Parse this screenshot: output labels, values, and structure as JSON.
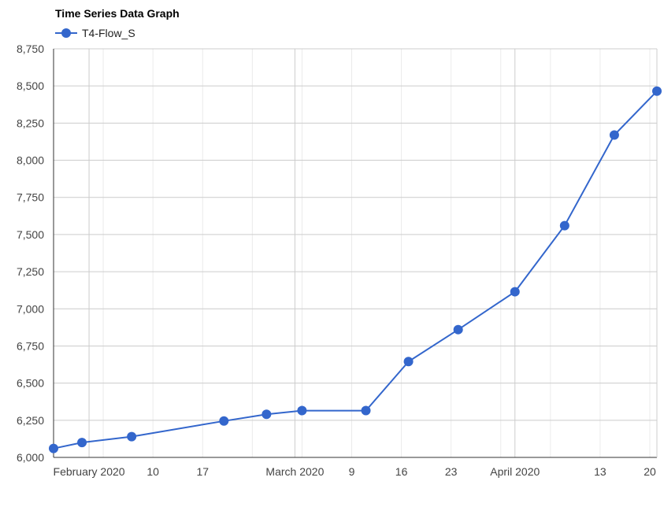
{
  "chart_data": {
    "type": "line",
    "title": "Time Series Data Graph",
    "xlabel": "",
    "ylabel": "",
    "ylim": [
      6000,
      8750
    ],
    "yticks": [
      6000,
      6250,
      6500,
      6750,
      7000,
      7250,
      7500,
      7750,
      8000,
      8250,
      8500,
      8750
    ],
    "ytick_labels": [
      "6,000",
      "6,250",
      "6,500",
      "6,750",
      "7,000",
      "7,250",
      "7,500",
      "7,750",
      "8,000",
      "8,250",
      "8,500",
      "8,750"
    ],
    "xlim": [
      "2020-01-27",
      "2020-04-21"
    ],
    "xticks": [
      {
        "date": "2020-02-01",
        "label": "February 2020"
      },
      {
        "date": "2020-02-10",
        "label": "10"
      },
      {
        "date": "2020-02-17",
        "label": "17"
      },
      {
        "date": "2020-03-01",
        "label": "March 2020"
      },
      {
        "date": "2020-03-09",
        "label": "9"
      },
      {
        "date": "2020-03-16",
        "label": "16"
      },
      {
        "date": "2020-03-23",
        "label": "23"
      },
      {
        "date": "2020-04-01",
        "label": "April 2020"
      },
      {
        "date": "2020-04-13",
        "label": "13"
      },
      {
        "date": "2020-04-20",
        "label": "20"
      }
    ],
    "grid": true,
    "legend_position": "top-left",
    "series": [
      {
        "name": "T4-Flow_S",
        "color": "#3366cc",
        "points": [
          {
            "x": "2020-01-27",
            "y": 6060
          },
          {
            "x": "2020-01-31",
            "y": 6100
          },
          {
            "x": "2020-02-07",
            "y": 6140
          },
          {
            "x": "2020-02-20",
            "y": 6245
          },
          {
            "x": "2020-02-26",
            "y": 6290
          },
          {
            "x": "2020-03-02",
            "y": 6315
          },
          {
            "x": "2020-03-11",
            "y": 6315
          },
          {
            "x": "2020-03-17",
            "y": 6645
          },
          {
            "x": "2020-03-24",
            "y": 6860
          },
          {
            "x": "2020-04-01",
            "y": 7115
          },
          {
            "x": "2020-04-08",
            "y": 7560
          },
          {
            "x": "2020-04-15",
            "y": 8170
          },
          {
            "x": "2020-04-21",
            "y": 8465
          }
        ]
      }
    ]
  }
}
